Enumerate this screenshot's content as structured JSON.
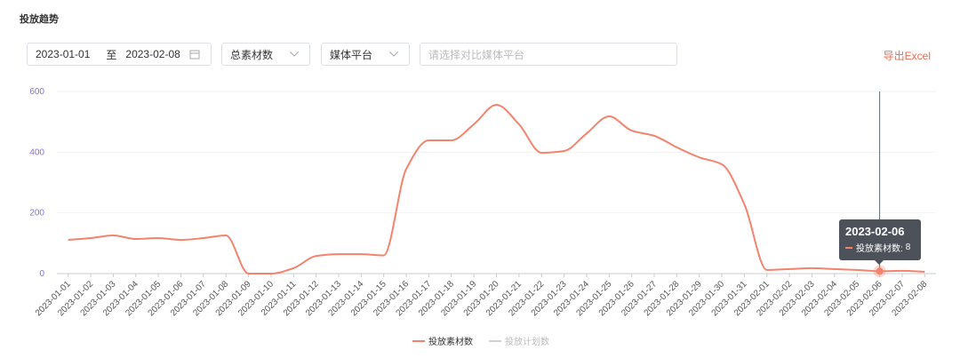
{
  "header": {
    "title": "投放趋势"
  },
  "filters": {
    "date_start": "2023-01-01",
    "date_sep": "至",
    "date_end": "2023-02-08",
    "metric": "总素材数",
    "platform": "媒体平台",
    "compare_placeholder": "请选择对比媒体平台",
    "export": "导出Excel"
  },
  "chart_data": {
    "type": "line",
    "categories": [
      "2023-01-01",
      "2023-01-02",
      "2023-01-03",
      "2023-01-04",
      "2023-01-05",
      "2023-01-06",
      "2023-01-07",
      "2023-01-08",
      "2023-01-09",
      "2023-01-10",
      "2023-01-11",
      "2023-01-12",
      "2023-01-13",
      "2023-01-14",
      "2023-01-15",
      "2023-01-16",
      "2023-01-17",
      "2023-01-18",
      "2023-01-19",
      "2023-01-20",
      "2023-01-21",
      "2023-01-22",
      "2023-01-23",
      "2023-01-24",
      "2023-01-25",
      "2023-01-26",
      "2023-01-27",
      "2023-01-28",
      "2023-01-29",
      "2023-01-30",
      "2023-01-31",
      "2023-02-01",
      "2023-02-02",
      "2023-02-03",
      "2023-02-04",
      "2023-02-05",
      "2023-02-06",
      "2023-02-07",
      "2023-02-08"
    ],
    "series": [
      {
        "name": "投放素材数",
        "color": "#f4836d",
        "values": [
          111,
          117,
          126,
          114,
          117,
          111,
          117,
          126,
          0,
          0,
          18,
          58,
          64,
          64,
          60,
          345,
          439,
          439,
          492,
          556,
          492,
          398,
          404,
          462,
          518,
          471,
          454,
          416,
          383,
          360,
          228,
          12,
          15,
          18,
          15,
          12,
          8,
          9,
          6
        ]
      }
    ],
    "inactive_legend": [
      {
        "name": "投放计划数",
        "color": "#d0d0d0"
      }
    ],
    "ylim": [
      0,
      600
    ],
    "yticks": [
      0,
      200,
      400,
      600
    ],
    "grid": true,
    "tooltip": {
      "index": 36,
      "label": "投放素材数:"
    }
  }
}
